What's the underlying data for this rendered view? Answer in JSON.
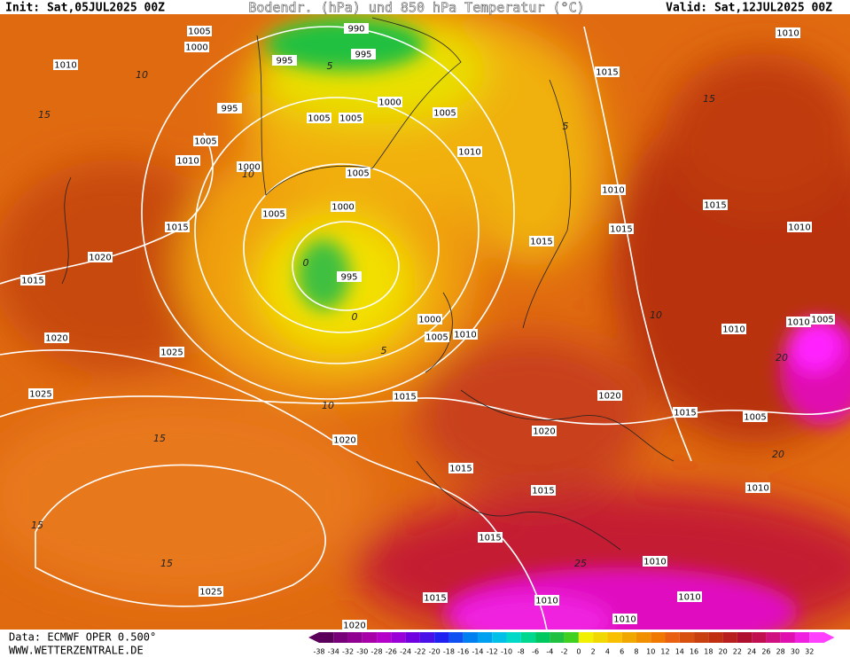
{
  "header": {
    "init": "Init: Sat,05JUL2025 00Z",
    "title": "Bodendr. (hPa) und 850 hPa Temperatur (°C)",
    "valid": "Valid: Sat,12JUL2025 00Z"
  },
  "footer": {
    "source": "Data: ECMWF OPER 0.500°",
    "website": "WWW.WETTERZENTRALE.DE"
  },
  "colorbar": {
    "ticks": [
      -38,
      -34,
      -32,
      -30,
      -28,
      -26,
      -24,
      -22,
      -20,
      -18,
      -16,
      -14,
      -12,
      -10,
      -8,
      -6,
      -4,
      -2,
      0,
      2,
      4,
      6,
      8,
      10,
      12,
      14,
      16,
      18,
      20,
      22,
      24,
      26,
      28,
      30,
      32
    ]
  },
  "isobar_labels": [
    1005,
    1000,
    990,
    995,
    995,
    1010,
    1015,
    1010,
    995,
    1005,
    1005,
    1000,
    1005,
    1005,
    1010,
    1000,
    1010,
    1005,
    1010,
    1000,
    1005,
    1015,
    1015,
    1015,
    1010,
    1015,
    1020,
    1015,
    995,
    1000,
    1010,
    1005,
    1010,
    1005,
    1010,
    1020,
    1025,
    1025,
    1015,
    1020,
    1015,
    1005,
    1020,
    1020,
    1015,
    1015,
    1010,
    1015,
    1010,
    1025,
    1015,
    1010,
    1010,
    1010,
    1020
  ],
  "temperature_labels": [
    10,
    15,
    10,
    5,
    0,
    0,
    5,
    10,
    15,
    15,
    15,
    20,
    25,
    20,
    15,
    10,
    5
  ]
}
